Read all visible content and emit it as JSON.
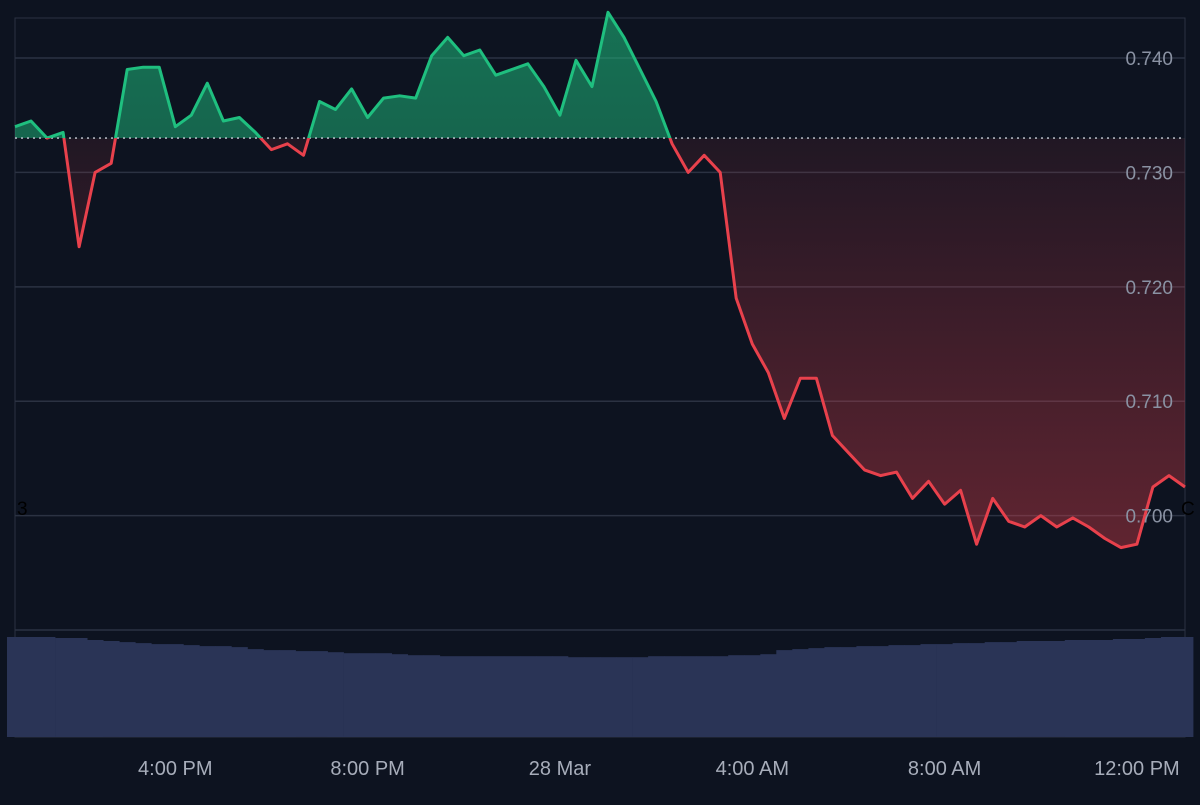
{
  "colors": {
    "background": "#0d1320",
    "grid": "#2b3242",
    "up": "#1fbf7f",
    "down": "#e8414c",
    "baseline": "#c9ced8",
    "volume": "#2a3456",
    "axis_text": "#8a92a3",
    "time_text": "#a7adba"
  },
  "edge_labels": {
    "left": "3",
    "right": "C"
  },
  "chart_data": {
    "type": "line",
    "baseline": 0.733,
    "ylim": [
      0.69,
      0.7435
    ],
    "yticks": [
      0.74,
      0.73,
      0.72,
      0.71,
      0.7
    ],
    "ytick_labels": [
      "0.740",
      "0.730",
      "0.720",
      "0.710",
      "0.700"
    ],
    "xlim": [
      "27 Mar 12:40 PM",
      "28 Mar 1:00 PM"
    ],
    "xtick_labels": [
      "4:00 PM",
      "8:00 PM",
      "28 Mar",
      "4:00 AM",
      "8:00 AM",
      "12:00 PM"
    ],
    "xticks": [
      "27 Mar 4:00 PM",
      "27 Mar 8:00 PM",
      "28 Mar 12:00 AM",
      "28 Mar 4:00 AM",
      "28 Mar 8:00 AM",
      "28 Mar 12:00 PM"
    ],
    "grid": true,
    "series": [
      {
        "x": [
          "27 Mar 12:40 PM",
          "27 Mar 1:00 PM",
          "27 Mar 1:20 PM",
          "27 Mar 1:40 PM",
          "27 Mar 2:00 PM",
          "27 Mar 2:20 PM",
          "27 Mar 2:40 PM",
          "27 Mar 3:00 PM",
          "27 Mar 3:20 PM",
          "27 Mar 3:40 PM",
          "27 Mar 4:00 PM",
          "27 Mar 4:20 PM",
          "27 Mar 4:40 PM",
          "27 Mar 5:00 PM",
          "27 Mar 5:20 PM",
          "27 Mar 5:40 PM",
          "27 Mar 6:00 PM",
          "27 Mar 6:20 PM",
          "27 Mar 6:40 PM",
          "27 Mar 7:00 PM",
          "27 Mar 7:20 PM",
          "27 Mar 7:40 PM",
          "27 Mar 8:00 PM",
          "27 Mar 8:20 PM",
          "27 Mar 8:40 PM",
          "27 Mar 9:00 PM",
          "27 Mar 9:20 PM",
          "27 Mar 9:40 PM",
          "27 Mar 10:00 PM",
          "27 Mar 10:20 PM",
          "27 Mar 10:40 PM",
          "27 Mar 11:00 PM",
          "27 Mar 11:20 PM",
          "27 Mar 11:40 PM",
          "28 Mar 12:00 AM",
          "28 Mar 12:20 AM",
          "28 Mar 12:40 AM",
          "28 Mar 1:00 AM",
          "28 Mar 1:20 AM",
          "28 Mar 1:40 AM",
          "28 Mar 2:00 AM",
          "28 Mar 2:20 AM",
          "28 Mar 2:40 AM",
          "28 Mar 3:00 AM",
          "28 Mar 3:20 AM",
          "28 Mar 3:40 AM",
          "28 Mar 4:00 AM",
          "28 Mar 4:20 AM",
          "28 Mar 4:40 AM",
          "28 Mar 5:00 AM",
          "28 Mar 5:20 AM",
          "28 Mar 5:40 AM",
          "28 Mar 6:00 AM",
          "28 Mar 6:20 AM",
          "28 Mar 6:40 AM",
          "28 Mar 7:00 AM",
          "28 Mar 7:20 AM",
          "28 Mar 7:40 AM",
          "28 Mar 8:00 AM",
          "28 Mar 8:20 AM",
          "28 Mar 8:40 AM",
          "28 Mar 9:00 AM",
          "28 Mar 9:20 AM",
          "28 Mar 9:40 AM",
          "28 Mar 10:00 AM",
          "28 Mar 10:20 AM",
          "28 Mar 10:40 AM",
          "28 Mar 11:00 AM",
          "28 Mar 11:20 AM",
          "28 Mar 11:40 AM",
          "28 Mar 12:00 PM",
          "28 Mar 12:20 PM",
          "28 Mar 12:40 PM",
          "28 Mar 1:00 PM"
        ],
        "y": [
          0.734,
          0.7345,
          0.733,
          0.7335,
          0.7235,
          0.73,
          0.7308,
          0.739,
          0.7392,
          0.7392,
          0.734,
          0.735,
          0.7378,
          0.7345,
          0.7348,
          0.7335,
          0.732,
          0.7325,
          0.7315,
          0.7362,
          0.7355,
          0.7373,
          0.7348,
          0.7365,
          0.7367,
          0.7365,
          0.7402,
          0.7418,
          0.7402,
          0.7407,
          0.7385,
          0.739,
          0.7395,
          0.7375,
          0.735,
          0.7398,
          0.7375,
          0.744,
          0.7418,
          0.739,
          0.7362,
          0.7325,
          0.73,
          0.7315,
          0.73,
          0.719,
          0.715,
          0.7125,
          0.7085,
          0.712,
          0.712,
          0.707,
          0.7055,
          0.704,
          0.7035,
          0.7038,
          0.7015,
          0.703,
          0.701,
          0.7022,
          0.6975,
          0.7015,
          0.6995,
          0.699,
          0.7,
          0.699,
          0.6998,
          0.699,
          0.698,
          0.6972,
          0.6975,
          0.7025,
          0.7035,
          0.7025
        ],
        "volume": [
          0.99,
          0.99,
          0.99,
          0.98,
          0.98,
          0.96,
          0.95,
          0.94,
          0.93,
          0.92,
          0.92,
          0.91,
          0.9,
          0.9,
          0.89,
          0.87,
          0.86,
          0.86,
          0.85,
          0.85,
          0.84,
          0.83,
          0.83,
          0.83,
          0.82,
          0.81,
          0.81,
          0.8,
          0.8,
          0.8,
          0.8,
          0.8,
          0.8,
          0.8,
          0.8,
          0.79,
          0.79,
          0.79,
          0.79,
          0.79,
          0.8,
          0.8,
          0.8,
          0.8,
          0.8,
          0.81,
          0.81,
          0.82,
          0.86,
          0.87,
          0.88,
          0.89,
          0.89,
          0.9,
          0.9,
          0.91,
          0.91,
          0.92,
          0.92,
          0.93,
          0.93,
          0.94,
          0.94,
          0.95,
          0.95,
          0.95,
          0.96,
          0.96,
          0.96,
          0.97,
          0.97,
          0.98,
          0.99,
          0.99
        ]
      }
    ]
  }
}
